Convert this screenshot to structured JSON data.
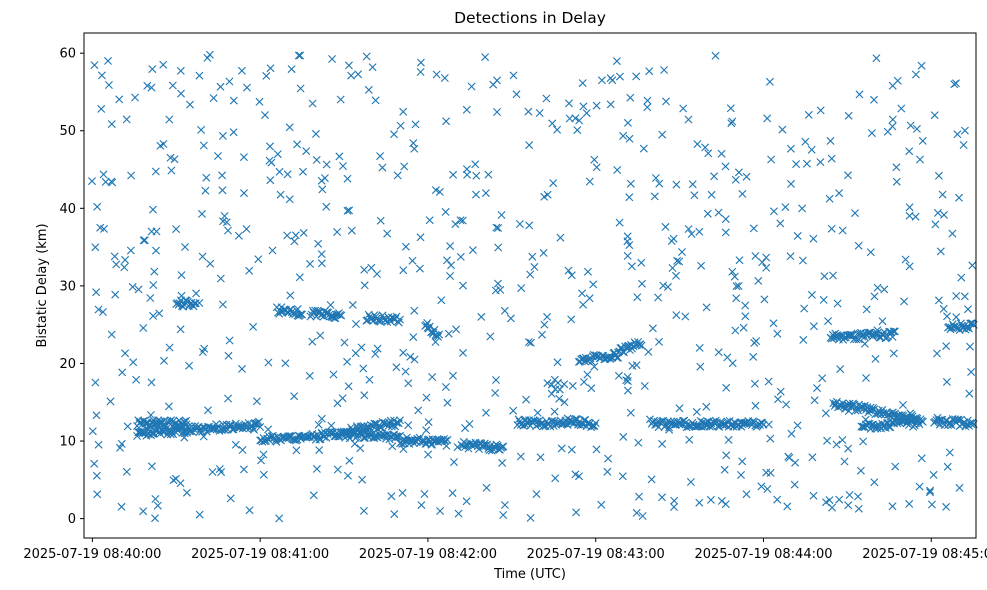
{
  "chart_data": {
    "type": "scatter",
    "title": "Detections in Delay",
    "xlabel": "Time (UTC)",
    "ylabel": "Bistatic Delay (km)",
    "marker": "x",
    "color": "#1f77b4",
    "xlim": [
      "2025-07-19 08:39:57",
      "2025-07-19 08:45:16"
    ],
    "ylim": [
      -2.5,
      62.6
    ],
    "xticks": [
      "2025-07-19 08:40:00",
      "2025-07-19 08:41:00",
      "2025-07-19 08:42:00",
      "2025-07-19 08:43:00",
      "2025-07-19 08:44:00",
      "2025-07-19 08:45:00"
    ],
    "yticks": [
      0,
      10,
      20,
      30,
      40,
      50,
      60
    ],
    "grid": false,
    "legend": null,
    "tracks": [
      {
        "t_start": "2025-07-19 08:40:16",
        "t_end": "2025-07-19 08:41:00",
        "y_start": 11.0,
        "y_end": 12.1
      },
      {
        "t_start": "2025-07-19 08:40:16",
        "t_end": "2025-07-19 08:40:34",
        "y_start": 12.3,
        "y_end": 12.2
      },
      {
        "t_start": "2025-07-19 08:41:00",
        "t_end": "2025-07-19 08:41:22",
        "y_start": 10.2,
        "y_end": 10.6
      },
      {
        "t_start": "2025-07-19 08:41:22",
        "t_end": "2025-07-19 08:41:50",
        "y_start": 10.9,
        "y_end": 10.6
      },
      {
        "t_start": "2025-07-19 08:41:30",
        "t_end": "2025-07-19 08:41:50",
        "y_start": 11.2,
        "y_end": 12.4
      },
      {
        "t_start": "2025-07-19 08:41:50",
        "t_end": "2025-07-19 08:42:07",
        "y_start": 10.1,
        "y_end": 9.8
      },
      {
        "t_start": "2025-07-19 08:42:12",
        "t_end": "2025-07-19 08:42:27",
        "y_start": 9.5,
        "y_end": 9.1
      },
      {
        "t_start": "2025-07-19 08:42:32",
        "t_end": "2025-07-19 08:42:50",
        "y_start": 12.4,
        "y_end": 12.2
      },
      {
        "t_start": "2025-07-19 08:42:50",
        "t_end": "2025-07-19 08:43:00",
        "y_start": 12.6,
        "y_end": 12.1
      },
      {
        "t_start": "2025-07-19 08:43:20",
        "t_end": "2025-07-19 08:44:00",
        "y_start": 12.2,
        "y_end": 12.2
      },
      {
        "t_start": "2025-07-19 08:44:25",
        "t_end": "2025-07-19 08:44:55",
        "y_start": 14.8,
        "y_end": 13.0
      },
      {
        "t_start": "2025-07-19 08:44:35",
        "t_end": "2025-07-19 08:44:57",
        "y_start": 11.8,
        "y_end": 12.6
      },
      {
        "t_start": "2025-07-19 08:45:01",
        "t_end": "2025-07-19 08:45:16",
        "y_start": 12.6,
        "y_end": 12.2
      },
      {
        "t_start": "2025-07-19 08:40:30",
        "t_end": "2025-07-19 08:40:37",
        "y_start": 27.8,
        "y_end": 27.6
      },
      {
        "t_start": "2025-07-19 08:41:06",
        "t_end": "2025-07-19 08:41:15",
        "y_start": 26.9,
        "y_end": 26.5
      },
      {
        "t_start": "2025-07-19 08:41:18",
        "t_end": "2025-07-19 08:41:29",
        "y_start": 26.4,
        "y_end": 26.2
      },
      {
        "t_start": "2025-07-19 08:41:38",
        "t_end": "2025-07-19 08:41:50",
        "y_start": 25.9,
        "y_end": 25.6
      },
      {
        "t_start": "2025-07-19 08:41:59",
        "t_end": "2025-07-19 08:42:04",
        "y_start": 25.1,
        "y_end": 23.5
      },
      {
        "t_start": "2025-07-19 08:42:54",
        "t_end": "2025-07-19 08:43:08",
        "y_start": 20.4,
        "y_end": 21.1
      },
      {
        "t_start": "2025-07-19 08:43:08",
        "t_end": "2025-07-19 08:43:16",
        "y_start": 21.5,
        "y_end": 22.6
      },
      {
        "t_start": "2025-07-19 08:44:24",
        "t_end": "2025-07-19 08:44:47",
        "y_start": 23.4,
        "y_end": 23.7
      },
      {
        "t_start": "2025-07-19 08:45:06",
        "t_end": "2025-07-19 08:45:16",
        "y_start": 24.6,
        "y_end": 24.9
      }
    ]
  }
}
